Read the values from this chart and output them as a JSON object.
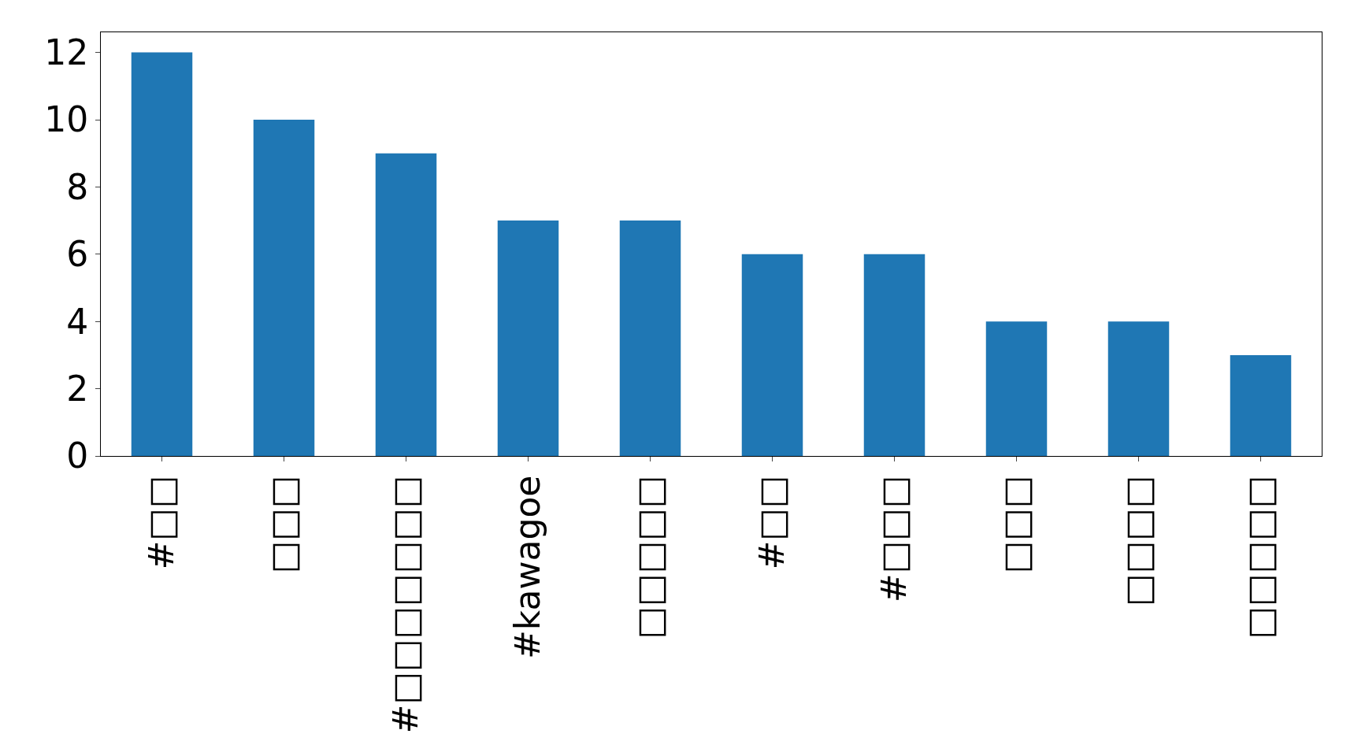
{
  "chart_data": {
    "type": "bar",
    "categories": [
      "#□□",
      "□□□",
      "#□□□□□□□",
      "#kawagoe",
      "□□□□□",
      "#□□",
      "#□□□",
      "□□□",
      "□□□□",
      "□□□□□"
    ],
    "values": [
      12,
      10,
      9,
      7,
      7,
      6,
      6,
      4,
      4,
      3
    ],
    "color": "#1f77b4",
    "ylim": [
      0,
      12.6
    ],
    "yticks": [
      0,
      2,
      4,
      6,
      8,
      10,
      12
    ]
  }
}
